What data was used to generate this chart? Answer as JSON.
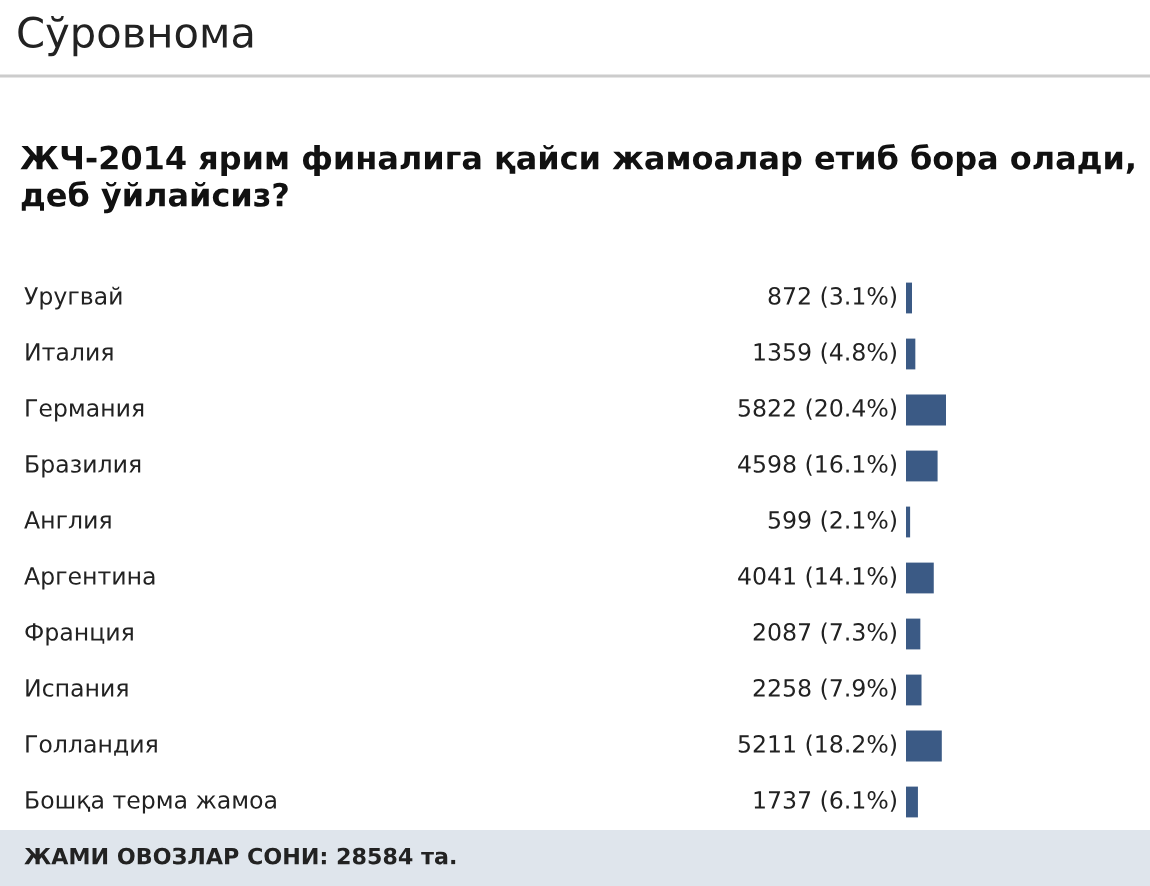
{
  "chart_data": {
    "type": "bar",
    "orientation": "horizontal",
    "title": "Сўровнома",
    "subtitle": "ЖЧ-2014 ярим финалига қайси жамоалар етиб бора олади, деб ўйлайсиз?",
    "categories": [
      "Уругвай",
      "Италия",
      "Германия",
      "Бразилия",
      "Англия",
      "Аргентина",
      "Франция",
      "Испания",
      "Голландия",
      "Бошқа терма жамоа"
    ],
    "values": [
      872,
      1359,
      5822,
      4598,
      599,
      4041,
      2087,
      2258,
      5211,
      1737
    ],
    "value_labels": [
      "872 (3.1%)",
      "1359 (4.8%)",
      "5822 (20.4%)",
      "4598 (16.1%)",
      "599 (2.1%)",
      "4041 (14.1%)",
      "2087 (7.3%)",
      "2258 (7.9%)",
      "5211 (18.2%)",
      "1737 (6.1%)"
    ],
    "color": "#3b5a85",
    "xlim": [
      0,
      5822
    ],
    "tick_labels": false,
    "annotations": [
      "ЖАМИ ОВОЗЛАР СОНИ: 28584 та."
    ]
  }
}
